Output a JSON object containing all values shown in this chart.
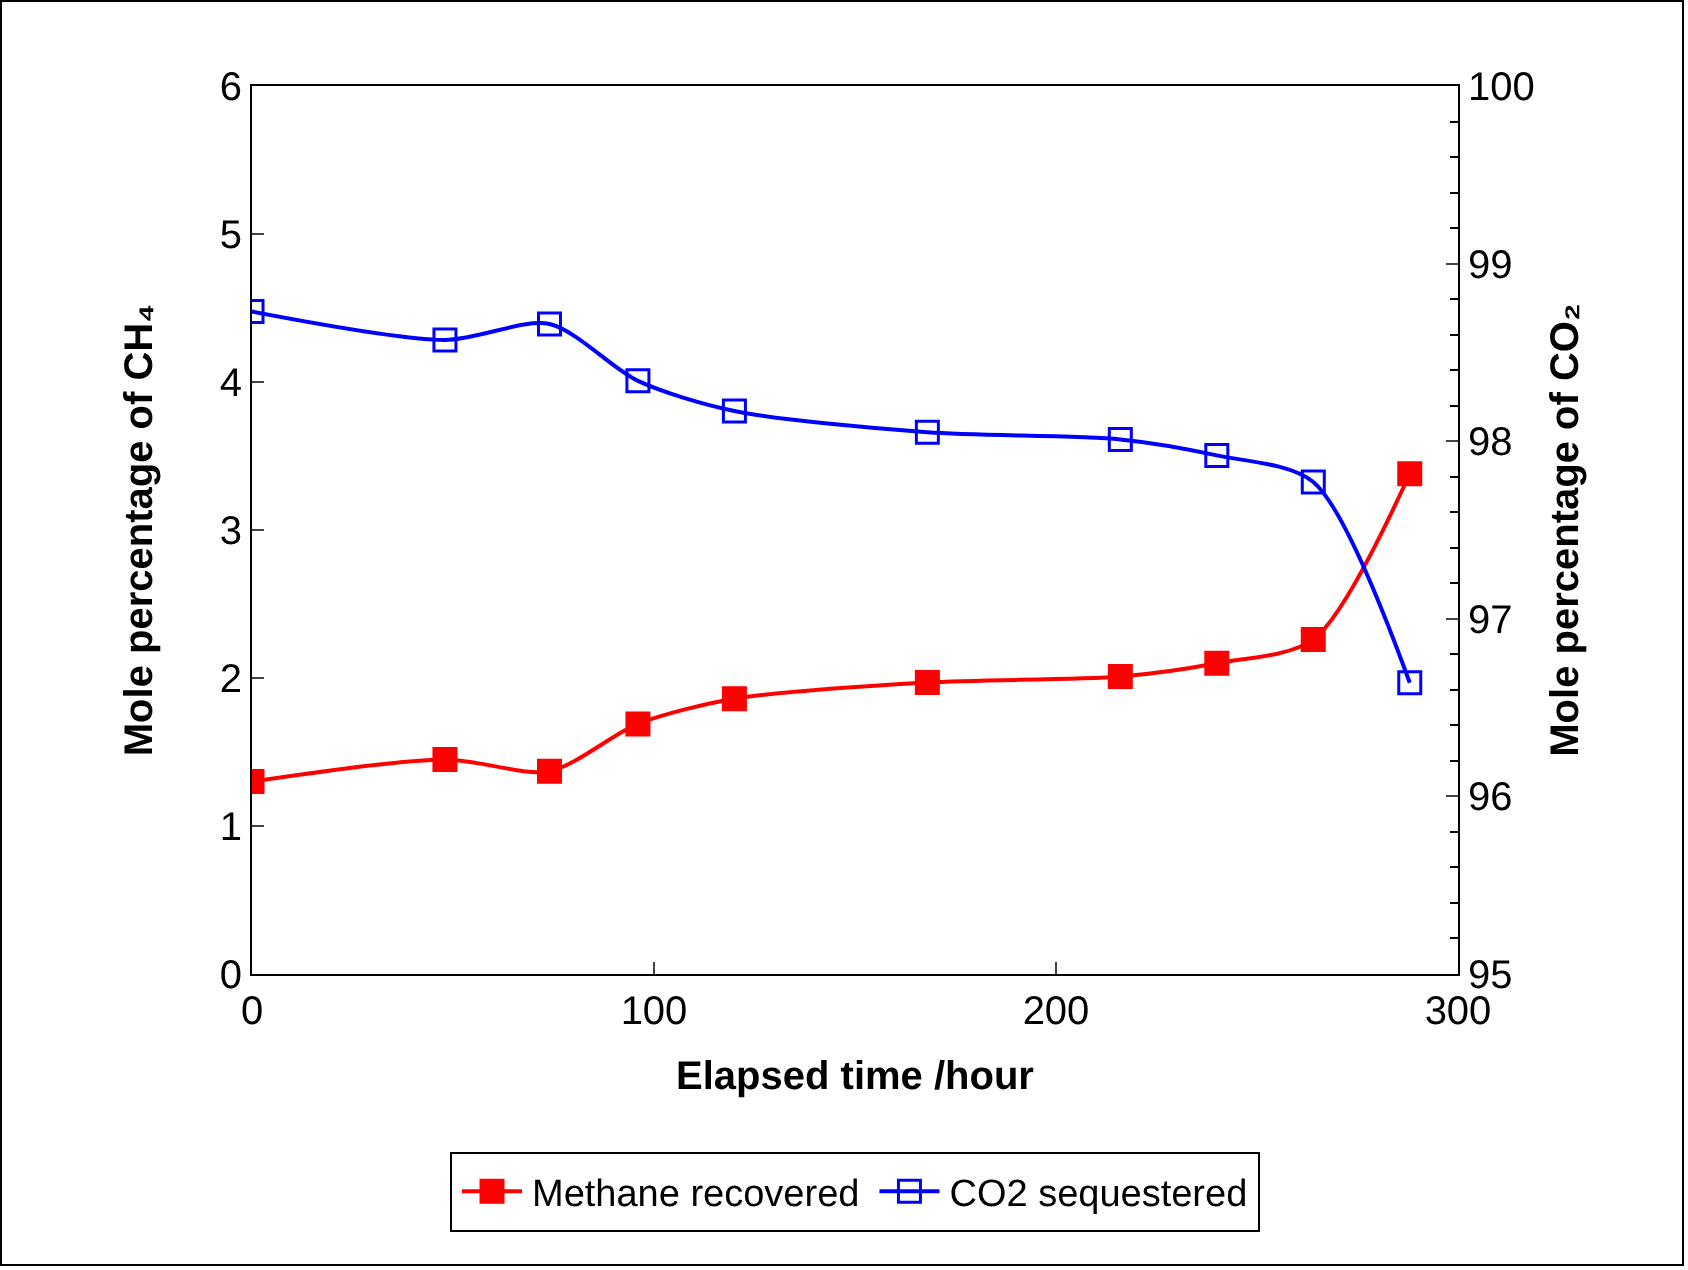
{
  "chart_data": {
    "type": "line",
    "xlabel": "Elapsed time /hour",
    "ylabel": "Mole percentage of CH₄",
    "y2label": "Mole percentage of CO₂",
    "xlim": [
      0,
      300
    ],
    "xticks": [
      0,
      100,
      200,
      300
    ],
    "ylim": [
      0,
      6
    ],
    "yticks": [
      0,
      1,
      2,
      3,
      4,
      5,
      6
    ],
    "y2lim": [
      95,
      100
    ],
    "y2ticks": [
      95,
      96,
      97,
      98,
      99,
      100
    ],
    "grid": false,
    "legend": "bottom",
    "marker": "square",
    "line_style": "solid",
    "series": [
      {
        "name": "Methane recovered",
        "color": "#ff0000",
        "x": [
          0,
          48,
          74,
          96,
          120,
          168,
          216,
          240,
          264,
          288
        ],
        "values": [
          1.3,
          1.45,
          1.37,
          1.69,
          1.86,
          1.97,
          2.01,
          2.1,
          2.26,
          3.38
        ]
      },
      {
        "name": "CO2 sequestered",
        "color": "#0000ff",
        "axis": "y2",
        "x": [
          0,
          48,
          74,
          96,
          120,
          168,
          216,
          240,
          264,
          288
        ],
        "values": [
          98.73,
          98.57,
          98.66,
          98.34,
          98.17,
          98.05,
          98.01,
          97.92,
          97.77,
          96.64
        ]
      }
    ]
  }
}
